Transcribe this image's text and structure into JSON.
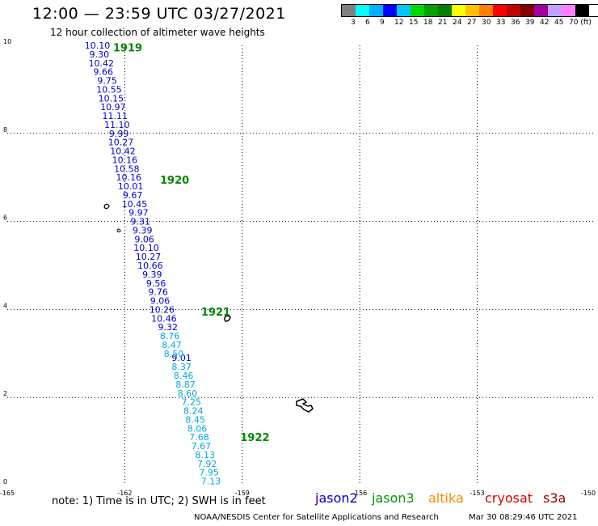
{
  "header": {
    "title": "12:00 — 23:59 UTC 03/27/2021",
    "subtitle": "12 hour collection of altimeter wave heights"
  },
  "legend": {
    "colors": [
      "#808080",
      "#00ffff",
      "#00b0ff",
      "#0000ff",
      "#00c8ff",
      "#00d800",
      "#00a000",
      "#008000",
      "#ffff00",
      "#ffc000",
      "#ff8000",
      "#ff0000",
      "#c00000",
      "#800000",
      "#a000a0",
      "#c0a0ff",
      "#ff80ff",
      "#000000"
    ],
    "labels": [
      "3",
      "6",
      "9",
      "12",
      "15",
      "18",
      "21",
      "24",
      "27",
      "30",
      "33",
      "36",
      "39",
      "42",
      "45",
      "70 (ft)"
    ]
  },
  "footer": {
    "note": "note: 1) Time is in UTC; 2) SWH is in feet",
    "missions": [
      {
        "name": "jason2",
        "color": "#0000cc"
      },
      {
        "name": "jason3",
        "color": "#009900"
      },
      {
        "name": "altika",
        "color": "#ff8800"
      },
      {
        "name": "cryosat",
        "color": "#dd0000"
      },
      {
        "name": "s3a",
        "color": "#990000"
      }
    ],
    "credit": "NOAA/NESDIS Center for Satellite Applications and Research",
    "timestamp": "Mar 30 08:29:46 UTC 2021"
  },
  "chart_data": {
    "type": "scatter",
    "title": "12 hour collection of altimeter wave heights",
    "xlim": [
      -165,
      -150
    ],
    "ylim": [
      0,
      10
    ],
    "x_ticks": [
      "-165",
      "-162",
      "-159",
      "-156",
      "-153",
      "-150"
    ],
    "y_ticks": [
      "0",
      "2",
      "4",
      "6",
      "8",
      "10"
    ],
    "grid": true,
    "units": "ft",
    "time_labels": [
      {
        "text": "1919",
        "x": -162.3,
        "y": 9.95
      },
      {
        "text": "1920",
        "x": -161.1,
        "y": 6.95
      },
      {
        "text": "1921",
        "x": -160.05,
        "y": 3.95
      },
      {
        "text": "1922",
        "x": -159.05,
        "y": 1.1
      }
    ],
    "series": [
      {
        "color": "#0000cc",
        "points": [
          {
            "x": -162.7,
            "y": 10.0,
            "v": "10.10"
          },
          {
            "x": -162.65,
            "y": 9.8,
            "v": "9.30"
          },
          {
            "x": -162.6,
            "y": 9.6,
            "v": "10.42"
          },
          {
            "x": -162.55,
            "y": 9.4,
            "v": "9.66"
          },
          {
            "x": -162.45,
            "y": 9.2,
            "v": "9.75"
          },
          {
            "x": -162.4,
            "y": 9.0,
            "v": "10.55"
          },
          {
            "x": -162.35,
            "y": 8.8,
            "v": "10.15"
          },
          {
            "x": -162.3,
            "y": 8.6,
            "v": "10.97"
          },
          {
            "x": -162.25,
            "y": 8.4,
            "v": "11.11"
          },
          {
            "x": -162.2,
            "y": 8.2,
            "v": "11.10"
          },
          {
            "x": -162.15,
            "y": 8.0,
            "v": "9.99"
          },
          {
            "x": -162.1,
            "y": 7.8,
            "v": "10.27"
          },
          {
            "x": -162.05,
            "y": 7.6,
            "v": "10.42"
          },
          {
            "x": -162.0,
            "y": 7.4,
            "v": "10.16"
          },
          {
            "x": -161.95,
            "y": 7.2,
            "v": "10.58"
          },
          {
            "x": -161.9,
            "y": 7.0,
            "v": "10.16"
          },
          {
            "x": -161.85,
            "y": 6.8,
            "v": "10.01"
          },
          {
            "x": -161.8,
            "y": 6.6,
            "v": "9.67"
          },
          {
            "x": -161.75,
            "y": 6.4,
            "v": "10.45"
          },
          {
            "x": -161.65,
            "y": 6.2,
            "v": "9.97"
          },
          {
            "x": -161.6,
            "y": 6.0,
            "v": "9.31"
          },
          {
            "x": -161.55,
            "y": 5.8,
            "v": "9.39"
          },
          {
            "x": -161.5,
            "y": 5.6,
            "v": "9.06"
          },
          {
            "x": -161.45,
            "y": 5.4,
            "v": "10.10"
          },
          {
            "x": -161.4,
            "y": 5.2,
            "v": "10.27"
          },
          {
            "x": -161.35,
            "y": 5.0,
            "v": "10.66"
          },
          {
            "x": -161.3,
            "y": 4.8,
            "v": "9.39"
          },
          {
            "x": -161.2,
            "y": 4.6,
            "v": "9.56"
          },
          {
            "x": -161.15,
            "y": 4.4,
            "v": "9.76"
          },
          {
            "x": -161.1,
            "y": 4.2,
            "v": "9.06"
          },
          {
            "x": -161.05,
            "y": 4.0,
            "v": "10.26"
          },
          {
            "x": -161.0,
            "y": 3.8,
            "v": "10.46"
          },
          {
            "x": -160.9,
            "y": 3.6,
            "v": "9.32"
          },
          {
            "x": -160.55,
            "y": 2.9,
            "v": "9.01"
          }
        ]
      },
      {
        "color": "#00aadd",
        "points": [
          {
            "x": -160.85,
            "y": 3.4,
            "v": "8.76"
          },
          {
            "x": -160.8,
            "y": 3.2,
            "v": "8.47"
          },
          {
            "x": -160.75,
            "y": 3.0,
            "v": "8.50"
          },
          {
            "x": -160.55,
            "y": 2.7,
            "v": "8.37"
          },
          {
            "x": -160.5,
            "y": 2.5,
            "v": "8.46"
          },
          {
            "x": -160.45,
            "y": 2.3,
            "v": "8.87"
          },
          {
            "x": -160.4,
            "y": 2.1,
            "v": "8.60"
          },
          {
            "x": -160.3,
            "y": 1.9,
            "v": "7.25"
          },
          {
            "x": -160.25,
            "y": 1.7,
            "v": "8.24"
          },
          {
            "x": -160.2,
            "y": 1.5,
            "v": "8.45"
          },
          {
            "x": -160.15,
            "y": 1.3,
            "v": "8.06"
          },
          {
            "x": -160.1,
            "y": 1.1,
            "v": "7.68"
          },
          {
            "x": -160.05,
            "y": 0.9,
            "v": "7.67"
          },
          {
            "x": -159.95,
            "y": 0.7,
            "v": "8.13"
          },
          {
            "x": -159.9,
            "y": 0.5,
            "v": "7.92"
          },
          {
            "x": -159.85,
            "y": 0.3,
            "v": "7.95"
          },
          {
            "x": -159.8,
            "y": 0.1,
            "v": "7.13"
          }
        ]
      }
    ]
  }
}
